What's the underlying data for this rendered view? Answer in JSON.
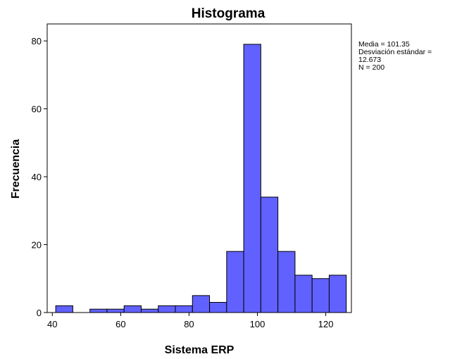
{
  "chart_data": {
    "type": "bar",
    "title": "Histograma",
    "xlabel": "Sistema ERP",
    "ylabel": "Frecuencia",
    "bar_color": "#6161ff",
    "bar_edge_color": "#000000",
    "xlim": [
      38.5,
      127.5
    ],
    "ylim": [
      0,
      85
    ],
    "bin_width": 5,
    "bins": [
      {
        "start": 41,
        "end": 46,
        "count": 2
      },
      {
        "start": 46,
        "end": 51,
        "count": 0
      },
      {
        "start": 51,
        "end": 56,
        "count": 1
      },
      {
        "start": 56,
        "end": 61,
        "count": 1
      },
      {
        "start": 61,
        "end": 66,
        "count": 2
      },
      {
        "start": 66,
        "end": 71,
        "count": 1
      },
      {
        "start": 71,
        "end": 76,
        "count": 2
      },
      {
        "start": 76,
        "end": 81,
        "count": 2
      },
      {
        "start": 81,
        "end": 86,
        "count": 5
      },
      {
        "start": 86,
        "end": 91,
        "count": 3
      },
      {
        "start": 91,
        "end": 96,
        "count": 18
      },
      {
        "start": 96,
        "end": 101,
        "count": 79
      },
      {
        "start": 101,
        "end": 106,
        "count": 34
      },
      {
        "start": 106,
        "end": 111,
        "count": 18
      },
      {
        "start": 111,
        "end": 116,
        "count": 11
      },
      {
        "start": 116,
        "end": 121,
        "count": 10
      },
      {
        "start": 121,
        "end": 126,
        "count": 11
      }
    ],
    "x_ticks": [
      40,
      60,
      80,
      100,
      120
    ],
    "y_ticks": [
      0,
      20,
      40,
      60,
      80
    ],
    "stats": {
      "mean_text": "Media = 101.35",
      "sd_text_line1": "Desviación estándar =",
      "sd_text_line2": "12.673",
      "n_text": "N = 200"
    }
  }
}
